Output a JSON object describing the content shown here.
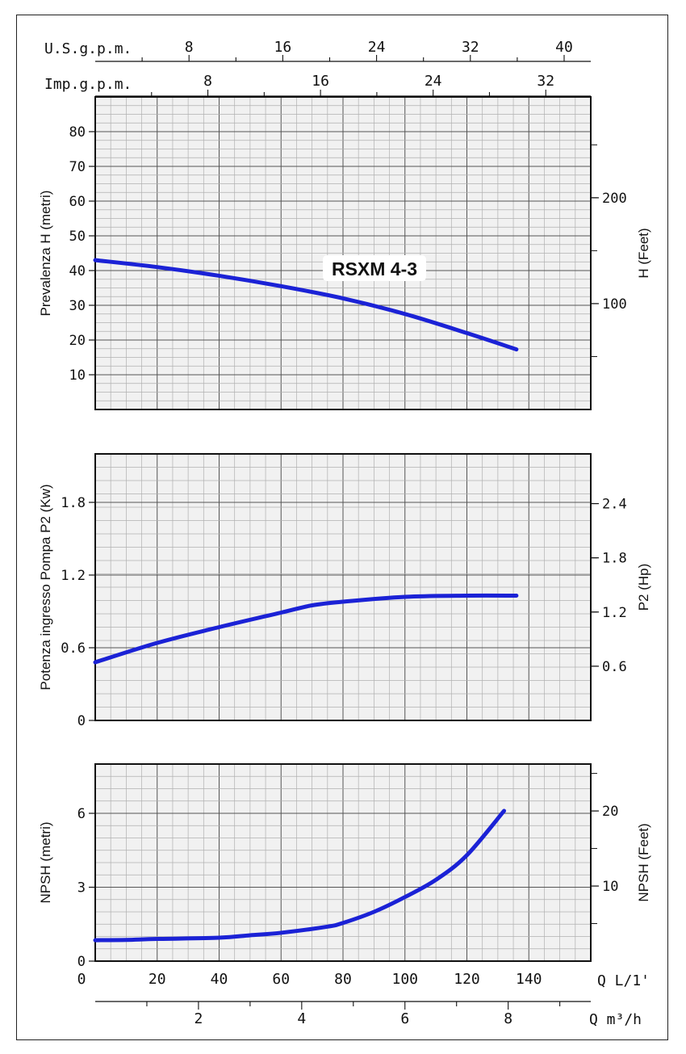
{
  "chart_data": {
    "model_label": "RSXM 4-3",
    "curve_color": "#1b22d6",
    "top_axes": {
      "usgpm": {
        "label": "U.S.g.p.m.",
        "ticks": [
          "8",
          "16",
          "24",
          "32",
          "40"
        ],
        "values": [
          8,
          16,
          24,
          32,
          40
        ]
      },
      "impgpm": {
        "label": "Imp.g.p.m.",
        "ticks": [
          "8",
          "16",
          "24",
          "32"
        ],
        "values": [
          8,
          16,
          24,
          32
        ]
      }
    },
    "bottom_axes": {
      "q_lmin": {
        "label": "Q L/1'",
        "ticks": [
          "0",
          "20",
          "40",
          "60",
          "80",
          "100",
          "120",
          "140"
        ],
        "values": [
          0,
          20,
          40,
          60,
          80,
          100,
          120,
          140
        ]
      },
      "q_m3h": {
        "label": "Q m³/h",
        "ticks": [
          "2",
          "4",
          "6",
          "8"
        ],
        "values": [
          2,
          4,
          6,
          8
        ]
      }
    },
    "x_range_lmin": [
      0,
      160
    ],
    "panels": [
      {
        "id": "head",
        "type": "line",
        "ylabel": "Prevalenza H (metri)",
        "ylabel_right": "H (Feet)",
        "ylim": [
          0,
          90
        ],
        "yticks": [
          "10",
          "20",
          "30",
          "40",
          "50",
          "60",
          "70",
          "80"
        ],
        "ytick_values": [
          10,
          20,
          30,
          40,
          50,
          60,
          70,
          80
        ],
        "yticks_right": [
          "100",
          "200"
        ],
        "yticks_right_values": [
          100,
          200
        ],
        "x": [
          0,
          20,
          40,
          60,
          80,
          100,
          120,
          136
        ],
        "y": [
          43,
          41,
          38.5,
          35.5,
          32,
          27.5,
          22,
          17.3
        ]
      },
      {
        "id": "power",
        "type": "line",
        "ylabel": "Potenza ingresso Pompa P2 (Kw)",
        "ylabel_right": "P2 (Hp)",
        "ylim": [
          0,
          2.2
        ],
        "yticks": [
          "0",
          "0.6",
          "1.2",
          "1.8"
        ],
        "ytick_values": [
          0,
          0.6,
          1.2,
          1.8
        ],
        "yticks_right": [
          "0.6",
          "1.2",
          "1.8",
          "2.4"
        ],
        "yticks_right_values": [
          0.6,
          1.2,
          1.8,
          2.4
        ],
        "x": [
          0,
          20,
          40,
          60,
          70,
          80,
          100,
          120,
          136
        ],
        "y": [
          0.48,
          0.64,
          0.77,
          0.89,
          0.95,
          0.98,
          1.02,
          1.03,
          1.03
        ]
      },
      {
        "id": "npsh",
        "type": "line",
        "ylabel": "NPSH (metri)",
        "ylabel_right": "NPSH (Feet)",
        "ylim": [
          0,
          8
        ],
        "yticks": [
          "0",
          "3",
          "6"
        ],
        "ytick_values": [
          0,
          3,
          6
        ],
        "yticks_right": [
          "10",
          "20"
        ],
        "yticks_right_values": [
          10,
          20
        ],
        "x": [
          0,
          10,
          20,
          40,
          50,
          60,
          75,
          80,
          90,
          100,
          110,
          120,
          132
        ],
        "y": [
          0.85,
          0.86,
          0.9,
          0.95,
          1.05,
          1.15,
          1.4,
          1.55,
          2.0,
          2.6,
          3.3,
          4.3,
          6.1
        ]
      }
    ]
  }
}
